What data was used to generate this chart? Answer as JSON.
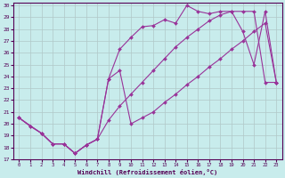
{
  "xlabel": "Windchill (Refroidissement éolien,°C)",
  "xlim": [
    -0.5,
    23.5
  ],
  "ylim": [
    17,
    30.2
  ],
  "yticks": [
    17,
    18,
    19,
    20,
    21,
    22,
    23,
    24,
    25,
    26,
    27,
    28,
    29,
    30
  ],
  "xticks": [
    0,
    1,
    2,
    3,
    4,
    5,
    6,
    7,
    8,
    9,
    10,
    11,
    12,
    13,
    14,
    15,
    16,
    17,
    18,
    19,
    20,
    21,
    22,
    23
  ],
  "background_color": "#c8ecec",
  "grid_color": "#b0c8c8",
  "line_color": "#993399",
  "lines": [
    {
      "x": [
        0,
        1,
        2,
        3,
        4,
        5,
        6,
        7,
        8,
        9,
        10,
        11,
        12,
        13,
        14,
        15,
        16,
        17,
        18,
        19,
        20,
        21,
        22,
        23
      ],
      "y": [
        20.5,
        19.8,
        19.2,
        18.3,
        18.3,
        17.5,
        18.2,
        18.7,
        23.8,
        26.3,
        27.3,
        28.2,
        28.3,
        28.8,
        28.5,
        30.0,
        29.5,
        29.3,
        29.5,
        29.5,
        27.8,
        25.0,
        29.5,
        23.5
      ]
    },
    {
      "x": [
        0,
        1,
        2,
        3,
        4,
        5,
        6,
        7,
        8,
        9,
        10,
        11,
        12,
        13,
        14,
        15,
        16,
        17,
        18,
        19,
        20,
        21,
        22,
        23
      ],
      "y": [
        20.5,
        19.8,
        19.2,
        18.3,
        18.3,
        17.5,
        18.2,
        18.7,
        20.3,
        21.5,
        22.5,
        23.5,
        24.5,
        25.5,
        26.5,
        27.3,
        28.0,
        28.7,
        29.2,
        29.5,
        29.5,
        29.5,
        23.5,
        23.5
      ]
    },
    {
      "x": [
        0,
        2,
        3,
        4,
        5,
        6,
        7,
        8,
        9,
        10,
        11,
        12,
        13,
        14,
        15,
        16,
        17,
        18,
        19,
        20,
        21,
        22,
        23
      ],
      "y": [
        20.5,
        19.2,
        18.3,
        18.3,
        17.5,
        18.2,
        18.7,
        23.8,
        24.5,
        20.0,
        20.5,
        21.0,
        21.8,
        22.5,
        23.3,
        24.0,
        24.8,
        25.5,
        26.3,
        27.0,
        27.8,
        28.5,
        23.5
      ]
    }
  ]
}
